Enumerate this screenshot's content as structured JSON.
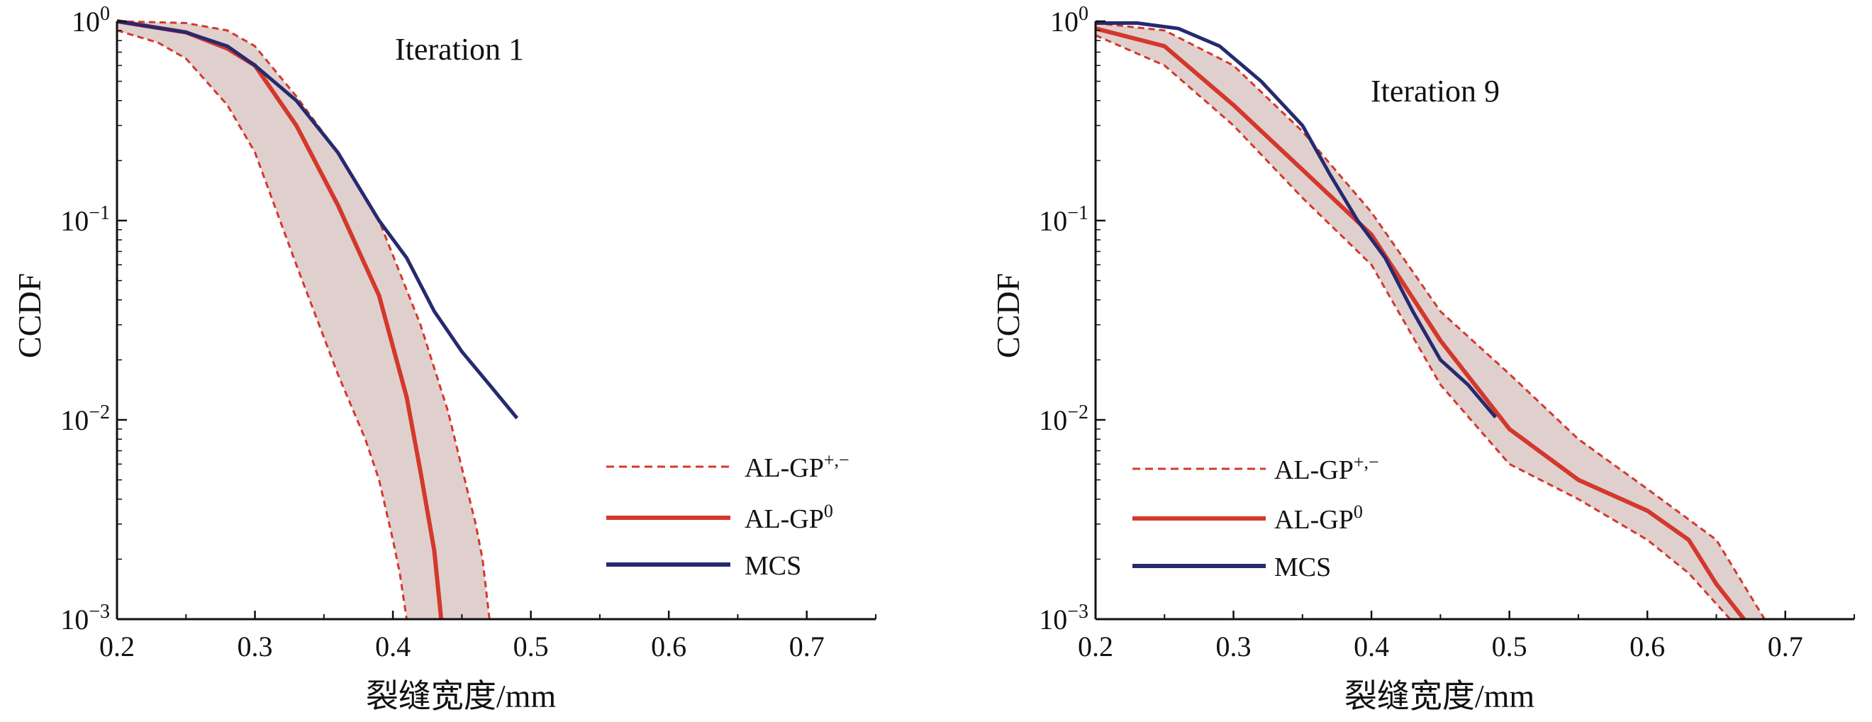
{
  "chart_data": [
    {
      "type": "line",
      "title": "Iteration 1",
      "xlabel": "裂缝宽度/mm",
      "ylabel": "CCDF",
      "xlim": [
        0.2,
        0.75
      ],
      "ylim": [
        0.001,
        1
      ],
      "yscale": "log",
      "x_ticks": [
        "0.2",
        "0.3",
        "0.4",
        "0.5",
        "0.6",
        "0.7"
      ],
      "y_ticks": [
        {
          "base": "10",
          "exp": "−3",
          "value": 0.001
        },
        {
          "base": "10",
          "exp": "−2",
          "value": 0.01
        },
        {
          "base": "10",
          "exp": "−1",
          "value": 0.1
        },
        {
          "base": "10",
          "exp": "0",
          "value": 1
        }
      ],
      "legend_position": "lower-right",
      "legend": [
        {
          "base": "AL-GP",
          "sup": "+,−",
          "style": "dashed",
          "color": "#d4382c"
        },
        {
          "base": "AL-GP",
          "sup": "0",
          "style": "solid",
          "color": "#d4382c"
        },
        {
          "base": "MCS",
          "sup": "",
          "style": "solid",
          "color": "#262a6e"
        }
      ],
      "series": [
        {
          "role": "mcs",
          "color": "#262a6e",
          "x": [
            0.2,
            0.25,
            0.28,
            0.3,
            0.33,
            0.36,
            0.39,
            0.41,
            0.43,
            0.45,
            0.47,
            0.49
          ],
          "y": [
            1.0,
            0.88,
            0.75,
            0.6,
            0.4,
            0.22,
            0.1,
            0.065,
            0.035,
            0.022,
            0.015,
            0.0102
          ]
        },
        {
          "role": "center",
          "color": "#d4382c",
          "x": [
            0.2,
            0.25,
            0.28,
            0.3,
            0.33,
            0.36,
            0.39,
            0.41,
            0.42,
            0.43,
            0.435
          ],
          "y": [
            1.0,
            0.88,
            0.73,
            0.6,
            0.3,
            0.12,
            0.042,
            0.013,
            0.0055,
            0.0022,
            0.001
          ]
        },
        {
          "role": "upper",
          "color": "#d4382c",
          "x": [
            0.2,
            0.25,
            0.28,
            0.3,
            0.33,
            0.36,
            0.39,
            0.42,
            0.44,
            0.46,
            0.465,
            0.47
          ],
          "y": [
            1.0,
            0.98,
            0.9,
            0.75,
            0.42,
            0.22,
            0.1,
            0.03,
            0.011,
            0.003,
            0.002,
            0.001
          ]
        },
        {
          "role": "lower",
          "color": "#d4382c",
          "x": [
            0.2,
            0.23,
            0.25,
            0.28,
            0.3,
            0.33,
            0.36,
            0.38,
            0.39,
            0.4,
            0.405,
            0.41
          ],
          "y": [
            0.9,
            0.78,
            0.65,
            0.38,
            0.22,
            0.06,
            0.017,
            0.008,
            0.005,
            0.0025,
            0.0017,
            0.001
          ]
        }
      ]
    },
    {
      "type": "line",
      "title": "Iteration 9",
      "xlabel": "裂缝宽度/mm",
      "ylabel": "CCDF",
      "xlim": [
        0.2,
        0.75
      ],
      "ylim": [
        0.001,
        1
      ],
      "yscale": "log",
      "x_ticks": [
        "0.2",
        "0.3",
        "0.4",
        "0.5",
        "0.6",
        "0.7"
      ],
      "y_ticks": [
        {
          "base": "10",
          "exp": "−3",
          "value": 0.001
        },
        {
          "base": "10",
          "exp": "−2",
          "value": 0.01
        },
        {
          "base": "10",
          "exp": "−1",
          "value": 0.1
        },
        {
          "base": "10",
          "exp": "0",
          "value": 1
        }
      ],
      "legend_position": "lower-left",
      "legend": [
        {
          "base": "AL-GP",
          "sup": "+,−",
          "style": "dashed",
          "color": "#d4382c"
        },
        {
          "base": "AL-GP",
          "sup": "0",
          "style": "solid",
          "color": "#d4382c"
        },
        {
          "base": "MCS",
          "sup": "",
          "style": "solid",
          "color": "#262a6e"
        }
      ],
      "series": [
        {
          "role": "mcs",
          "color": "#262a6e",
          "x": [
            0.2,
            0.23,
            0.26,
            0.29,
            0.32,
            0.35,
            0.37,
            0.39,
            0.41,
            0.43,
            0.45,
            0.47,
            0.49
          ],
          "y": [
            0.98,
            0.98,
            0.92,
            0.75,
            0.5,
            0.3,
            0.17,
            0.1,
            0.065,
            0.035,
            0.02,
            0.015,
            0.0103
          ]
        },
        {
          "role": "center",
          "color": "#d4382c",
          "x": [
            0.2,
            0.25,
            0.3,
            0.35,
            0.4,
            0.45,
            0.5,
            0.55,
            0.6,
            0.63,
            0.65,
            0.67
          ],
          "y": [
            0.92,
            0.75,
            0.38,
            0.18,
            0.085,
            0.025,
            0.009,
            0.005,
            0.0035,
            0.0025,
            0.0015,
            0.001
          ]
        },
        {
          "role": "upper",
          "color": "#d4382c",
          "x": [
            0.2,
            0.25,
            0.3,
            0.35,
            0.4,
            0.45,
            0.5,
            0.55,
            0.6,
            0.65,
            0.685
          ],
          "y": [
            0.98,
            0.9,
            0.6,
            0.28,
            0.11,
            0.035,
            0.017,
            0.008,
            0.0045,
            0.0025,
            0.001
          ]
        },
        {
          "role": "lower",
          "color": "#d4382c",
          "x": [
            0.2,
            0.25,
            0.3,
            0.35,
            0.4,
            0.45,
            0.5,
            0.55,
            0.6,
            0.63,
            0.66
          ],
          "y": [
            0.85,
            0.6,
            0.3,
            0.13,
            0.06,
            0.015,
            0.006,
            0.004,
            0.0025,
            0.0017,
            0.001
          ]
        }
      ]
    }
  ]
}
